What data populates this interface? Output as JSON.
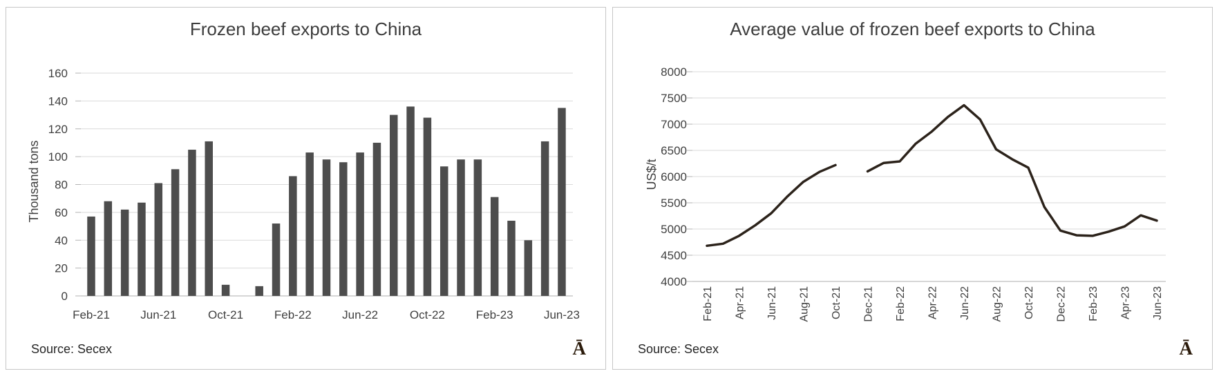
{
  "page": {
    "background_color": "#ffffff",
    "panel_border_color": "#c6c6c6"
  },
  "chart_data": [
    {
      "type": "bar",
      "title": "Frozen beef exports to China",
      "ylabel": "Thousand tons",
      "xlabel": "",
      "source": "Source: Secex",
      "logo": "Ā",
      "ylim": [
        0,
        160
      ],
      "ytick_step": 20,
      "xtick_every": 4,
      "grid": true,
      "legend": "none",
      "bar_color": "#4d4d4d",
      "categories": [
        "Feb-21",
        "Mar-21",
        "Apr-21",
        "May-21",
        "Jun-21",
        "Jul-21",
        "Aug-21",
        "Sep-21",
        "Oct-21",
        "Nov-21",
        "Dec-21",
        "Jan-22",
        "Feb-22",
        "Mar-22",
        "Apr-22",
        "May-22",
        "Jun-22",
        "Jul-22",
        "Aug-22",
        "Sep-22",
        "Oct-22",
        "Nov-22",
        "Dec-22",
        "Jan-23",
        "Feb-23",
        "Mar-23",
        "Apr-23",
        "May-23",
        "Jun-23"
      ],
      "values": [
        57,
        68,
        62,
        67,
        81,
        91,
        105,
        111,
        8,
        null,
        7,
        52,
        86,
        103,
        98,
        96,
        103,
        110,
        130,
        136,
        128,
        93,
        98,
        98,
        71,
        54,
        40,
        111,
        135
      ]
    },
    {
      "type": "line",
      "title": "Average value of frozen beef exports to China",
      "ylabel": "US$/t",
      "xlabel": "",
      "source": "Source: Secex",
      "logo": "Ā",
      "ylim": [
        4000,
        8000
      ],
      "ytick_step": 500,
      "xtick_every": 2,
      "grid": true,
      "legend": "none",
      "line_color": "#2c231b",
      "categories": [
        "Feb-21",
        "Mar-21",
        "Apr-21",
        "May-21",
        "Jun-21",
        "Jul-21",
        "Aug-21",
        "Sep-21",
        "Oct-21",
        "Nov-21",
        "Dec-21",
        "Jan-22",
        "Feb-22",
        "Mar-22",
        "Apr-22",
        "May-22",
        "Jun-22",
        "Jul-22",
        "Aug-22",
        "Sep-22",
        "Oct-22",
        "Nov-22",
        "Dec-22",
        "Jan-23",
        "Feb-23",
        "Mar-23",
        "Apr-23",
        "May-23",
        "Jun-23"
      ],
      "values": [
        4680,
        4720,
        4870,
        5070,
        5300,
        5620,
        5900,
        6090,
        6220,
        null,
        6100,
        6260,
        6290,
        6630,
        6860,
        7140,
        7360,
        7090,
        6520,
        6330,
        6170,
        5420,
        4970,
        4880,
        4870,
        4950,
        5050,
        5260,
        5160
      ]
    }
  ]
}
